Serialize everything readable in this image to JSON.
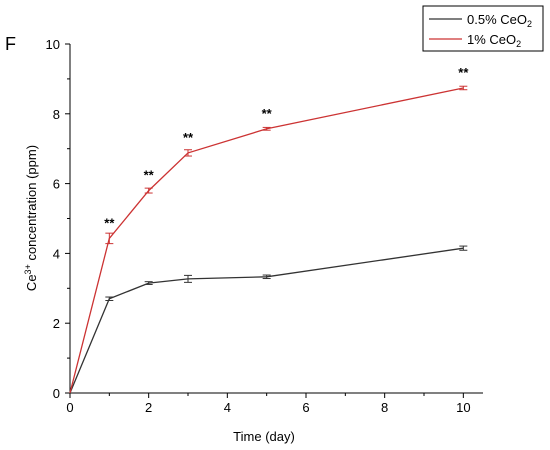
{
  "panel_letter": "F",
  "chart_data": {
    "type": "line",
    "xlabel": "Time (day)",
    "ylabel": {
      "prefix": "Ce",
      "sup": "3+",
      "suffix": " concentration (ppm)"
    },
    "xlim": [
      0,
      10.5
    ],
    "ylim": [
      0,
      10
    ],
    "xticks": [
      0,
      2,
      4,
      6,
      8,
      10
    ],
    "yticks": [
      0,
      2,
      4,
      6,
      8,
      10
    ],
    "grid": false,
    "legend_position": "top-right",
    "series": [
      {
        "name": {
          "prefix": "0.5% CeO",
          "sub": "2"
        },
        "color": "#333333",
        "x": [
          0,
          1,
          2,
          3,
          5,
          10
        ],
        "y": [
          0,
          2.7,
          3.15,
          3.27,
          3.33,
          4.15
        ],
        "err": [
          0,
          0.05,
          0.04,
          0.1,
          0.05,
          0.06
        ]
      },
      {
        "name": {
          "prefix": "1% CeO",
          "sub": "2"
        },
        "color": "#cc3333",
        "x": [
          0,
          1,
          2,
          3,
          5,
          10
        ],
        "y": [
          0,
          4.43,
          5.8,
          6.88,
          7.57,
          8.74
        ],
        "err": [
          0,
          0.15,
          0.07,
          0.09,
          0.04,
          0.05
        ]
      }
    ],
    "annotations": [
      {
        "x": 1,
        "y": 4.43,
        "text": "**"
      },
      {
        "x": 2,
        "y": 5.8,
        "text": "**"
      },
      {
        "x": 3,
        "y": 6.88,
        "text": "**"
      },
      {
        "x": 5,
        "y": 7.57,
        "text": "**"
      },
      {
        "x": 10,
        "y": 8.74,
        "text": "**"
      }
    ]
  }
}
